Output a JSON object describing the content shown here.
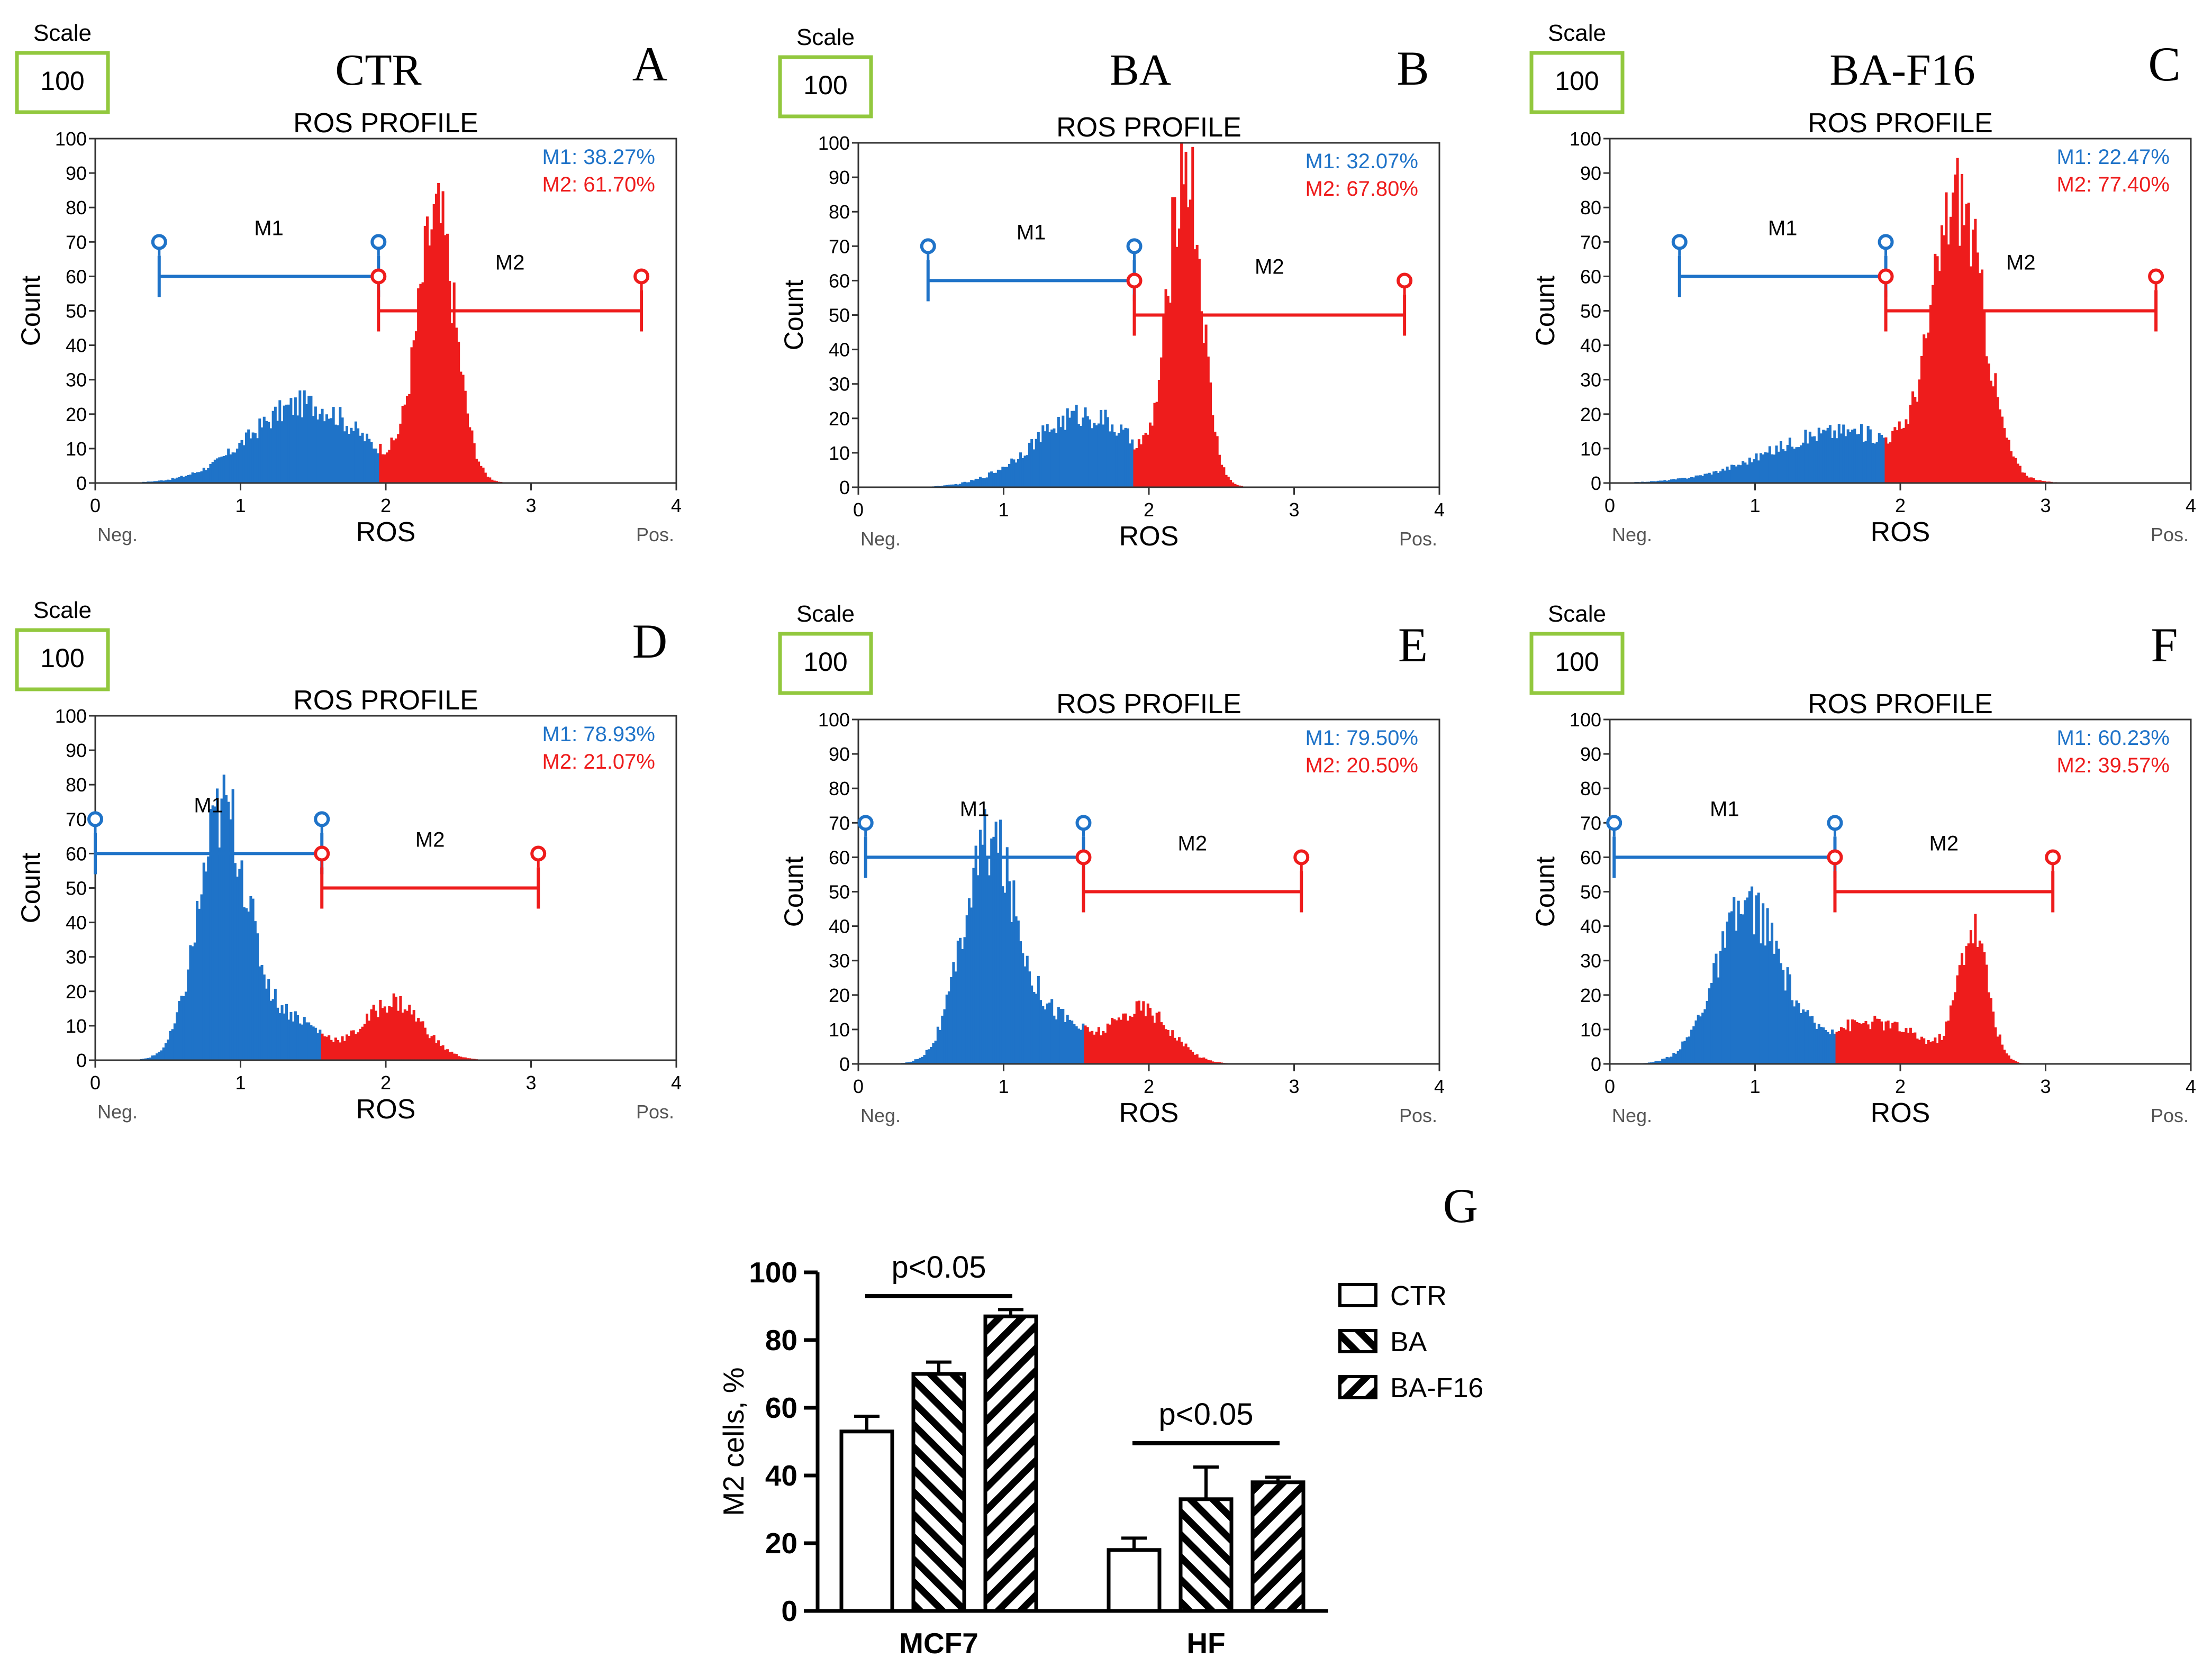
{
  "figure": {
    "panel_letters": [
      "A",
      "B",
      "C",
      "D",
      "E",
      "F",
      "G"
    ],
    "column_titles": [
      "CTR",
      "BA",
      "BA-F16"
    ]
  },
  "chart_data": [
    {
      "type": "histogram",
      "panel": "A",
      "column_title": "CTR",
      "scale_label": "Scale",
      "scale_value": "100",
      "title": "ROS PROFILE",
      "xlabel": "ROS",
      "ylabel": "Count",
      "xlim": [
        0,
        4
      ],
      "ylim": [
        0,
        100
      ],
      "xticks": [
        "0",
        "1",
        "2",
        "3",
        "4"
      ],
      "yticks": [
        "0",
        "10",
        "20",
        "30",
        "40",
        "50",
        "60",
        "70",
        "80",
        "90",
        "100"
      ],
      "neg_label": "Neg.",
      "pos_label": "Pos.",
      "gates": [
        {
          "name": "M1",
          "start": 0.44,
          "end": 1.95,
          "level": 60,
          "color": "#1f73c8",
          "percent_text": "M1: 38.27%"
        },
        {
          "name": "M2",
          "start": 1.95,
          "end": 3.76,
          "level": 50,
          "color": "#ee1c1c",
          "percent_text": "M2: 61.70%"
        }
      ],
      "peaks": [
        {
          "center": 1.45,
          "height": 23,
          "width": 0.38
        },
        {
          "center": 2.35,
          "height": 76,
          "width": 0.13
        }
      ],
      "split": 1.95
    },
    {
      "type": "histogram",
      "panel": "B",
      "column_title": "BA",
      "scale_label": "Scale",
      "scale_value": "100",
      "title": "ROS PROFILE",
      "xlabel": "ROS",
      "ylabel": "Count",
      "xlim": [
        0,
        4
      ],
      "ylim": [
        0,
        100
      ],
      "xticks": [
        "0",
        "1",
        "2",
        "3",
        "4"
      ],
      "yticks": [
        "0",
        "10",
        "20",
        "30",
        "40",
        "50",
        "60",
        "70",
        "80",
        "90",
        "100"
      ],
      "neg_label": "Neg.",
      "pos_label": "Pos.",
      "gates": [
        {
          "name": "M1",
          "start": 0.48,
          "end": 1.9,
          "level": 60,
          "color": "#1f73c8",
          "percent_text": "M1: 32.07%"
        },
        {
          "name": "M2",
          "start": 1.9,
          "end": 3.76,
          "level": 50,
          "color": "#ee1c1c",
          "percent_text": "M2: 67.80%"
        }
      ],
      "peaks": [
        {
          "center": 1.55,
          "height": 21,
          "width": 0.35
        },
        {
          "center": 2.25,
          "height": 93,
          "width": 0.11
        }
      ],
      "split": 1.9
    },
    {
      "type": "histogram",
      "panel": "C",
      "column_title": "BA-F16",
      "scale_label": "Scale",
      "scale_value": "100",
      "title": "ROS PROFILE",
      "xlabel": "ROS",
      "ylabel": "Count",
      "xlim": [
        0,
        4
      ],
      "ylim": [
        0,
        100
      ],
      "xticks": [
        "0",
        "1",
        "2",
        "3",
        "4"
      ],
      "yticks": [
        "0",
        "10",
        "20",
        "30",
        "40",
        "50",
        "60",
        "70",
        "80",
        "90",
        "100"
      ],
      "neg_label": "Neg.",
      "pos_label": "Pos.",
      "gates": [
        {
          "name": "M1",
          "start": 0.48,
          "end": 1.9,
          "level": 60,
          "color": "#1f73c8",
          "percent_text": "M1: 22.47%"
        },
        {
          "name": "M2",
          "start": 1.9,
          "end": 3.76,
          "level": 50,
          "color": "#ee1c1c",
          "percent_text": "M2: 77.40%"
        }
      ],
      "peaks": [
        {
          "center": 1.6,
          "height": 15,
          "width": 0.5
        },
        {
          "center": 2.4,
          "height": 80,
          "width": 0.17
        }
      ],
      "split": 1.9
    },
    {
      "type": "histogram",
      "panel": "D",
      "scale_label": "Scale",
      "scale_value": "100",
      "title": "ROS PROFILE",
      "xlabel": "ROS",
      "ylabel": "Count",
      "xlim": [
        0,
        4
      ],
      "ylim": [
        0,
        100
      ],
      "xticks": [
        "0",
        "1",
        "2",
        "3",
        "4"
      ],
      "yticks": [
        "0",
        "10",
        "20",
        "30",
        "40",
        "50",
        "60",
        "70",
        "80",
        "90",
        "100"
      ],
      "neg_label": "Neg.",
      "pos_label": "Pos.",
      "gates": [
        {
          "name": "M1",
          "start": 0.0,
          "end": 1.56,
          "level": 60,
          "color": "#1f73c8",
          "percent_text": "M1: 78.93%"
        },
        {
          "name": "M2",
          "start": 1.56,
          "end": 3.05,
          "level": 50,
          "color": "#ee1c1c",
          "percent_text": "M2: 21.07%"
        }
      ],
      "peaks": [
        {
          "center": 0.88,
          "height": 72,
          "width": 0.17
        },
        {
          "center": 1.35,
          "height": 12,
          "width": 0.2
        },
        {
          "center": 2.05,
          "height": 17,
          "width": 0.2
        }
      ],
      "split": 1.56
    },
    {
      "type": "histogram",
      "panel": "E",
      "scale_label": "Scale",
      "scale_value": "100",
      "title": "ROS PROFILE",
      "xlabel": "ROS",
      "ylabel": "Count",
      "xlim": [
        0,
        4
      ],
      "ylim": [
        0,
        100
      ],
      "xticks": [
        "0",
        "1",
        "2",
        "3",
        "4"
      ],
      "yticks": [
        "0",
        "10",
        "20",
        "30",
        "40",
        "50",
        "60",
        "70",
        "80",
        "90",
        "100"
      ],
      "neg_label": "Neg.",
      "pos_label": "Pos.",
      "gates": [
        {
          "name": "M1",
          "start": 0.05,
          "end": 1.55,
          "level": 60,
          "color": "#1f73c8",
          "percent_text": "M1: 79.50%"
        },
        {
          "name": "M2",
          "start": 1.55,
          "end": 3.05,
          "level": 50,
          "color": "#ee1c1c",
          "percent_text": "M2: 20.50%"
        }
      ],
      "peaks": [
        {
          "center": 0.9,
          "height": 64,
          "width": 0.18
        },
        {
          "center": 1.35,
          "height": 13,
          "width": 0.2
        },
        {
          "center": 1.95,
          "height": 16,
          "width": 0.2
        }
      ],
      "split": 1.55
    },
    {
      "type": "histogram",
      "panel": "F",
      "scale_label": "Scale",
      "scale_value": "100",
      "title": "ROS PROFILE",
      "xlabel": "ROS",
      "ylabel": "Count",
      "xlim": [
        0,
        4
      ],
      "ylim": [
        0,
        100
      ],
      "xticks": [
        "0",
        "1",
        "2",
        "3",
        "4"
      ],
      "yticks": [
        "0",
        "10",
        "20",
        "30",
        "40",
        "50",
        "60",
        "70",
        "80",
        "90",
        "100"
      ],
      "neg_label": "Neg.",
      "pos_label": "Pos.",
      "gates": [
        {
          "name": "M1",
          "start": 0.03,
          "end": 1.55,
          "level": 60,
          "color": "#1f73c8",
          "percent_text": "M1: 60.23%"
        },
        {
          "name": "M2",
          "start": 1.55,
          "end": 3.05,
          "level": 50,
          "color": "#ee1c1c",
          "percent_text": "M2: 39.57%"
        }
      ],
      "peaks": [
        {
          "center": 0.95,
          "height": 45,
          "width": 0.22
        },
        {
          "center": 1.8,
          "height": 12,
          "width": 0.35
        },
        {
          "center": 2.5,
          "height": 38,
          "width": 0.1
        }
      ],
      "split": 1.55
    },
    {
      "type": "bar",
      "panel": "G",
      "categories": [
        "MCF7",
        "HF"
      ],
      "series": [
        {
          "name": "CTR",
          "values": [
            53,
            18
          ],
          "errors": [
            4.5,
            3.5
          ],
          "pattern": "none"
        },
        {
          "name": "BA",
          "values": [
            70,
            33
          ],
          "errors": [
            3.5,
            9.5
          ],
          "pattern": "forward"
        },
        {
          "name": "BA-F16",
          "values": [
            87,
            38
          ],
          "errors": [
            2,
            1.5
          ],
          "pattern": "backward"
        }
      ],
      "ylabel": "M2 cells, %",
      "ylim": [
        0,
        100
      ],
      "yticks": [
        "0",
        "20",
        "40",
        "60",
        "80",
        "100"
      ],
      "annotations": [
        {
          "text": "p<0.05",
          "group": "MCF7"
        },
        {
          "text": "p<0.05",
          "group": "HF"
        }
      ]
    }
  ]
}
